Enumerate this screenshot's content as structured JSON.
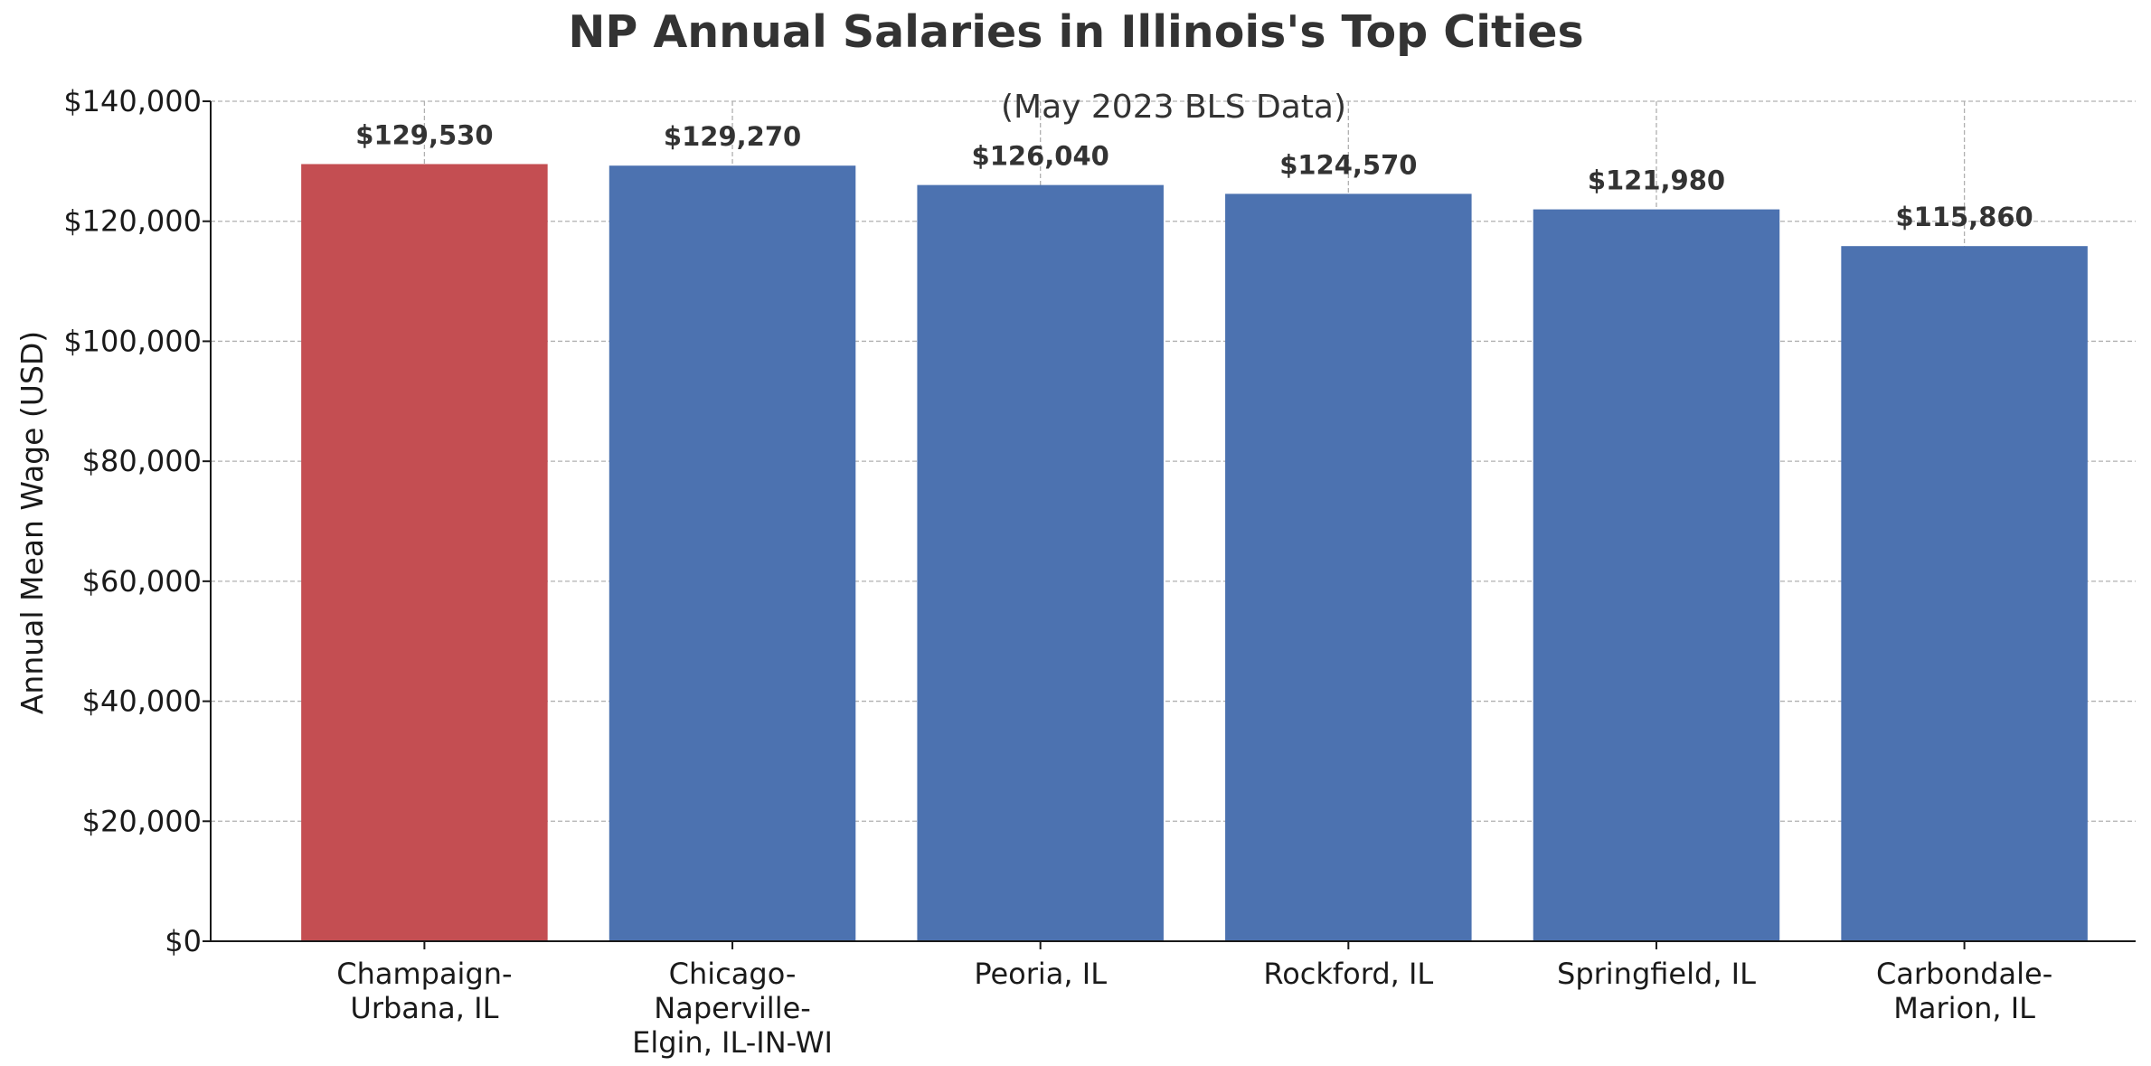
{
  "chart_data": {
    "type": "bar",
    "title": "NP Annual Salaries in Illinois's Top Cities",
    "subtitle": "(May 2023 BLS Data)",
    "xlabel": "",
    "ylabel": "Annual Mean Wage (USD)",
    "ylim": [
      0,
      140000
    ],
    "y_ticks": [
      0,
      20000,
      40000,
      60000,
      80000,
      100000,
      120000,
      140000
    ],
    "y_tick_labels": [
      "$0",
      "$20,000",
      "$40,000",
      "$60,000",
      "$80,000",
      "$100,000",
      "$120,000",
      "$140,000"
    ],
    "categories": [
      [
        "Champaign-",
        "Urbana, IL"
      ],
      [
        "Chicago-",
        "Naperville-",
        "Elgin, IL-IN-WI"
      ],
      [
        "Peoria, IL"
      ],
      [
        "Rockford, IL"
      ],
      [
        "Springfield, IL"
      ],
      [
        "Carbondale-",
        "Marion, IL"
      ]
    ],
    "values": [
      129530,
      129270,
      126040,
      124570,
      121980,
      115860
    ],
    "value_labels": [
      "$129,530",
      "$129,270",
      "$126,040",
      "$124,570",
      "$121,980",
      "$115,860"
    ],
    "bar_colors": [
      "#c44e52",
      "#4c72b0",
      "#4c72b0",
      "#4c72b0",
      "#4c72b0",
      "#4c72b0"
    ],
    "grid": true,
    "legend": "none"
  }
}
